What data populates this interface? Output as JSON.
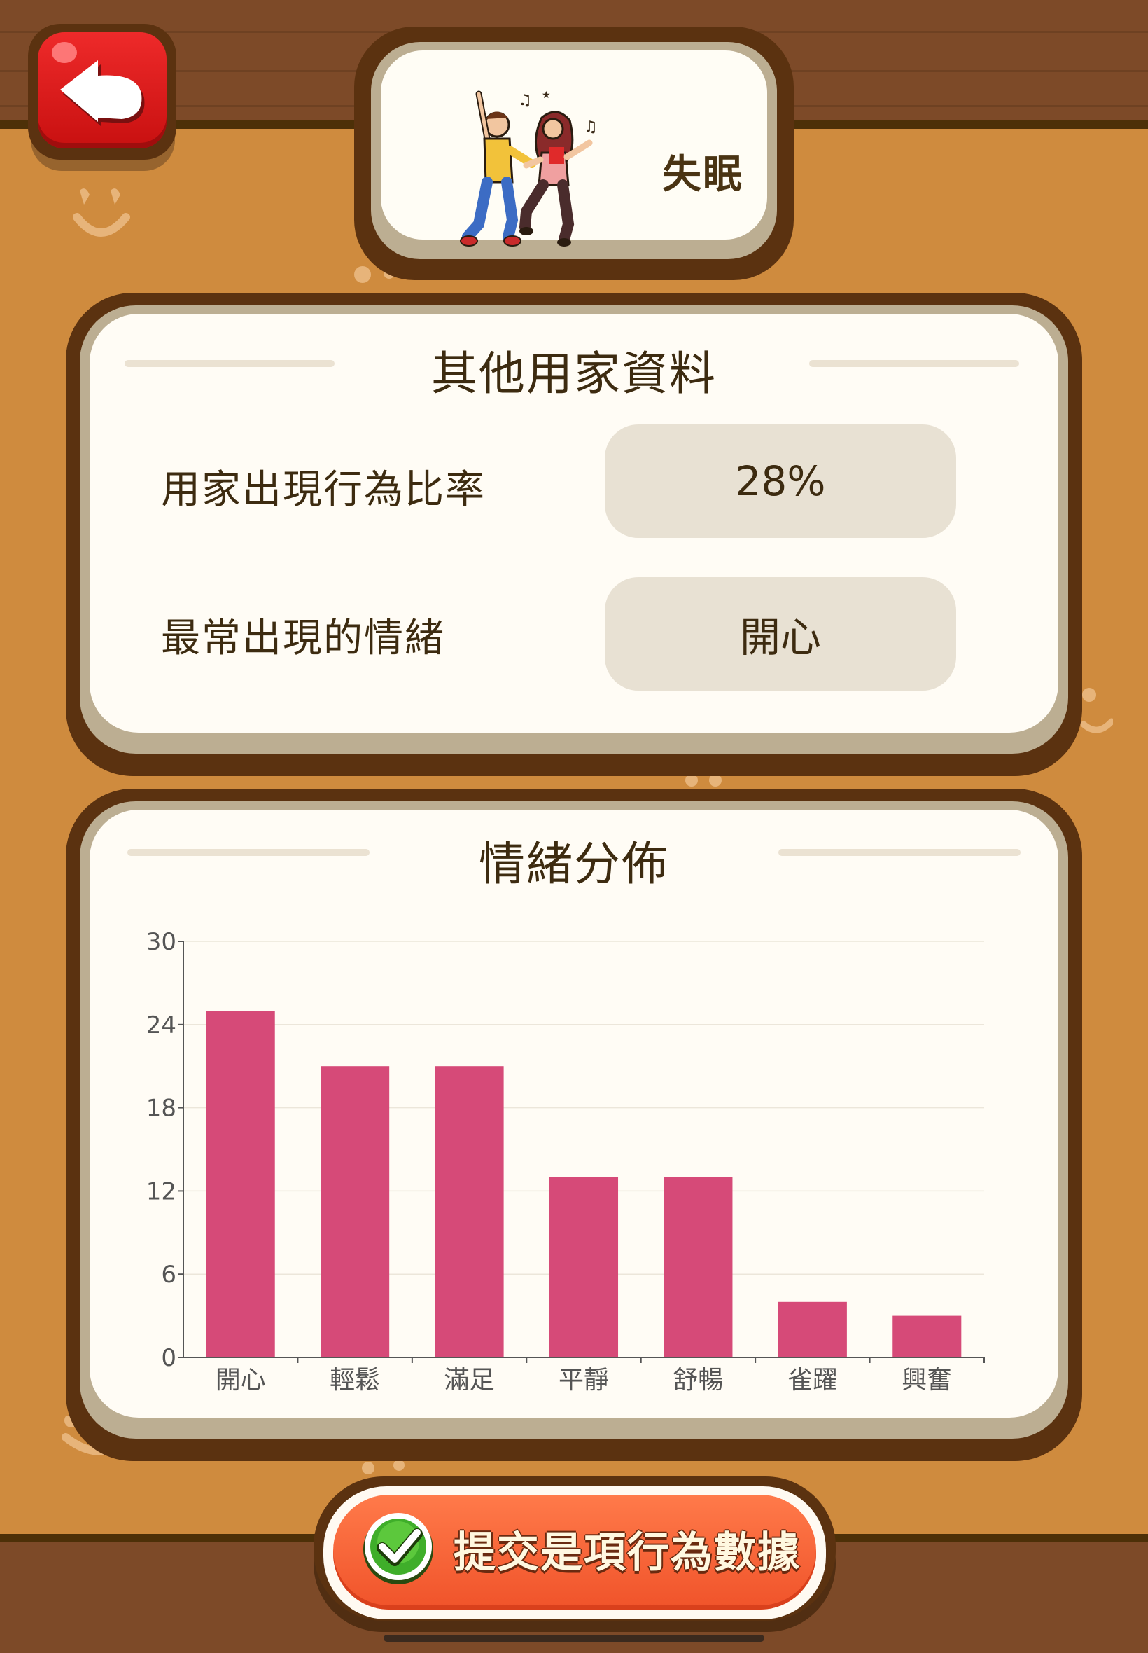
{
  "header": {
    "title": "失眠",
    "illustration_icon": "dancing-couple-icon"
  },
  "navigation": {
    "back_icon": "back-arrow-icon"
  },
  "info_card": {
    "title": "其他用家資料",
    "rows": [
      {
        "label": "用家出現行為比率",
        "value": "28%"
      },
      {
        "label": "最常出現的情緒",
        "value": "開心"
      }
    ]
  },
  "chart_card": {
    "title": "情緒分佈"
  },
  "chart_data": {
    "type": "bar",
    "categories": [
      "開心",
      "輕鬆",
      "滿足",
      "平靜",
      "舒暢",
      "雀躍",
      "興奮"
    ],
    "values": [
      25,
      21,
      21,
      13,
      13,
      4,
      3
    ],
    "yticks": [
      0,
      6,
      12,
      18,
      24,
      30
    ],
    "ylim": [
      0,
      30
    ],
    "grid": true,
    "bar_color": "#d64a78",
    "title": "",
    "xlabel": "",
    "ylabel": ""
  },
  "submit": {
    "label": "提交是項行為數據",
    "icon": "check-circle-icon"
  },
  "colors": {
    "background": "#cf8b3e",
    "band": "#7d4a28",
    "card_border": "#5b3210",
    "card_face": "#fffcf5",
    "pill": "#e8e1d3",
    "back_button": "#e21d1d",
    "submit_button": "#f5602f"
  }
}
